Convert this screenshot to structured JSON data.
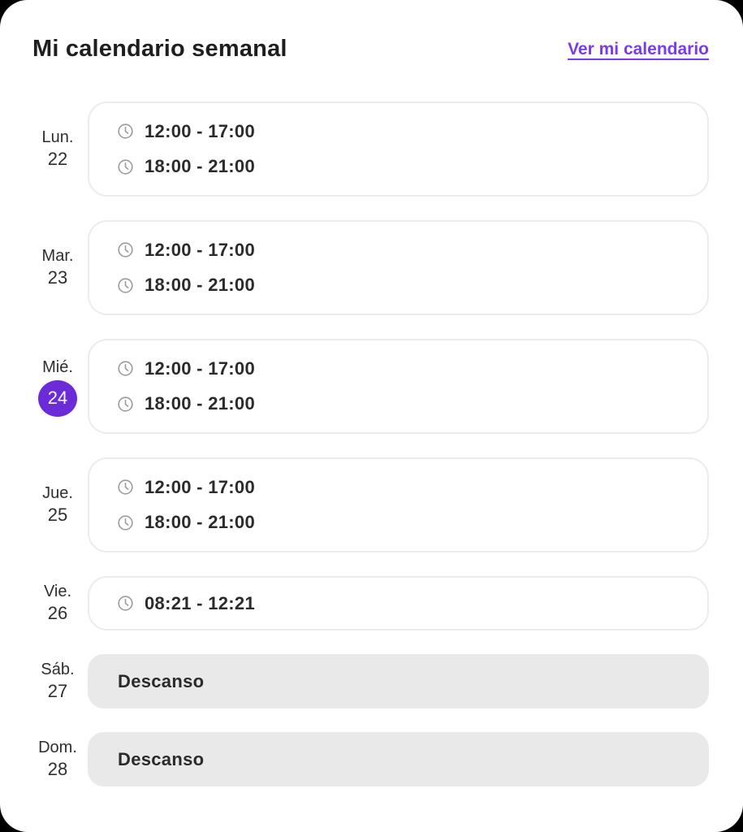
{
  "header": {
    "title": "Mi calendario semanal",
    "link_label": "Ver mi calendario"
  },
  "colors": {
    "accent": "#7C3AED",
    "badge": "#6C2BD9",
    "rest_bg": "#E9E9E9",
    "card_border": "#ECECEC",
    "text": "#2B2B2B",
    "icon": "#9A9A9A"
  },
  "days": [
    {
      "abbr": "Lun.",
      "number": "22",
      "selected": false,
      "type": "slots",
      "slots": [
        "12:00 - 17:00",
        "18:00 - 21:00"
      ]
    },
    {
      "abbr": "Mar.",
      "number": "23",
      "selected": false,
      "type": "slots",
      "slots": [
        "12:00 - 17:00",
        "18:00 - 21:00"
      ]
    },
    {
      "abbr": "Mié.",
      "number": "24",
      "selected": true,
      "type": "slots",
      "slots": [
        "12:00 - 17:00",
        "18:00 - 21:00"
      ]
    },
    {
      "abbr": "Jue.",
      "number": "25",
      "selected": false,
      "type": "slots",
      "slots": [
        "12:00 - 17:00",
        "18:00 - 21:00"
      ]
    },
    {
      "abbr": "Vie.",
      "number": "26",
      "selected": false,
      "type": "slots",
      "slots": [
        "08:21 - 12:21"
      ]
    },
    {
      "abbr": "Sáb.",
      "number": "27",
      "selected": false,
      "type": "rest",
      "rest_label": "Descanso"
    },
    {
      "abbr": "Dom.",
      "number": "28",
      "selected": false,
      "type": "rest",
      "rest_label": "Descanso"
    }
  ]
}
